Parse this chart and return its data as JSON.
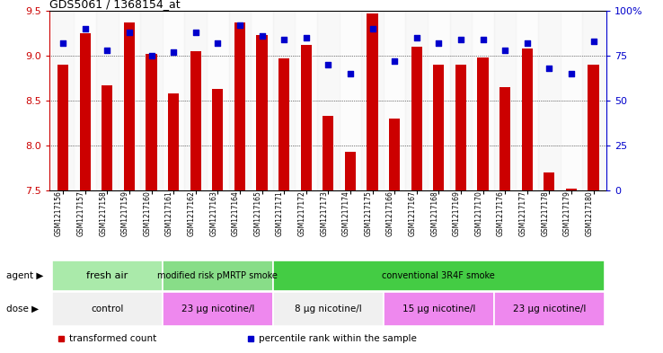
{
  "title": "GDS5061 / 1368154_at",
  "samples": [
    "GSM1217156",
    "GSM1217157",
    "GSM1217158",
    "GSM1217159",
    "GSM1217160",
    "GSM1217161",
    "GSM1217162",
    "GSM1217163",
    "GSM1217164",
    "GSM1217165",
    "GSM1217171",
    "GSM1217172",
    "GSM1217173",
    "GSM1217174",
    "GSM1217175",
    "GSM1217166",
    "GSM1217167",
    "GSM1217168",
    "GSM1217169",
    "GSM1217170",
    "GSM1217176",
    "GSM1217177",
    "GSM1217178",
    "GSM1217179",
    "GSM1217180"
  ],
  "bar_values": [
    8.9,
    9.25,
    8.67,
    9.37,
    9.02,
    8.58,
    9.05,
    8.63,
    9.37,
    9.23,
    8.97,
    9.12,
    8.33,
    7.93,
    9.47,
    8.3,
    9.1,
    8.9,
    8.9,
    8.98,
    8.65,
    9.08,
    7.7,
    7.52,
    8.9
  ],
  "percentile_values": [
    82,
    90,
    78,
    88,
    75,
    77,
    88,
    82,
    92,
    86,
    84,
    85,
    70,
    65,
    90,
    72,
    85,
    82,
    84,
    84,
    78,
    82,
    68,
    65,
    83
  ],
  "bar_color": "#cc0000",
  "dot_color": "#0000cc",
  "ymin": 7.5,
  "ymax": 9.5,
  "yticks": [
    7.5,
    8.0,
    8.5,
    9.0,
    9.5
  ],
  "right_yticks": [
    0,
    25,
    50,
    75,
    100
  ],
  "right_ytick_labels": [
    "0",
    "25",
    "50",
    "75",
    "100%"
  ],
  "hgrid_values": [
    8.0,
    8.5,
    9.0
  ],
  "agent_groups": [
    {
      "label": "fresh air",
      "start": 0,
      "end": 4,
      "color": "#aaeaaa"
    },
    {
      "label": "modified risk pMRTP smoke",
      "start": 5,
      "end": 9,
      "color": "#88dd88"
    },
    {
      "label": "conventional 3R4F smoke",
      "start": 10,
      "end": 24,
      "color": "#44cc44"
    }
  ],
  "dose_groups": [
    {
      "label": "control",
      "start": 0,
      "end": 4,
      "color": "#f0f0f0"
    },
    {
      "label": "23 μg nicotine/l",
      "start": 5,
      "end": 9,
      "color": "#ee88ee"
    },
    {
      "label": "8 μg nicotine/l",
      "start": 10,
      "end": 14,
      "color": "#f0f0f0"
    },
    {
      "label": "15 μg nicotine/l",
      "start": 15,
      "end": 19,
      "color": "#ee88ee"
    },
    {
      "label": "23 μg nicotine/l",
      "start": 20,
      "end": 24,
      "color": "#ee88ee"
    }
  ],
  "legend_items": [
    {
      "label": "transformed count",
      "color": "#cc0000"
    },
    {
      "label": "percentile rank within the sample",
      "color": "#0000cc"
    }
  ],
  "bar_width": 0.5
}
